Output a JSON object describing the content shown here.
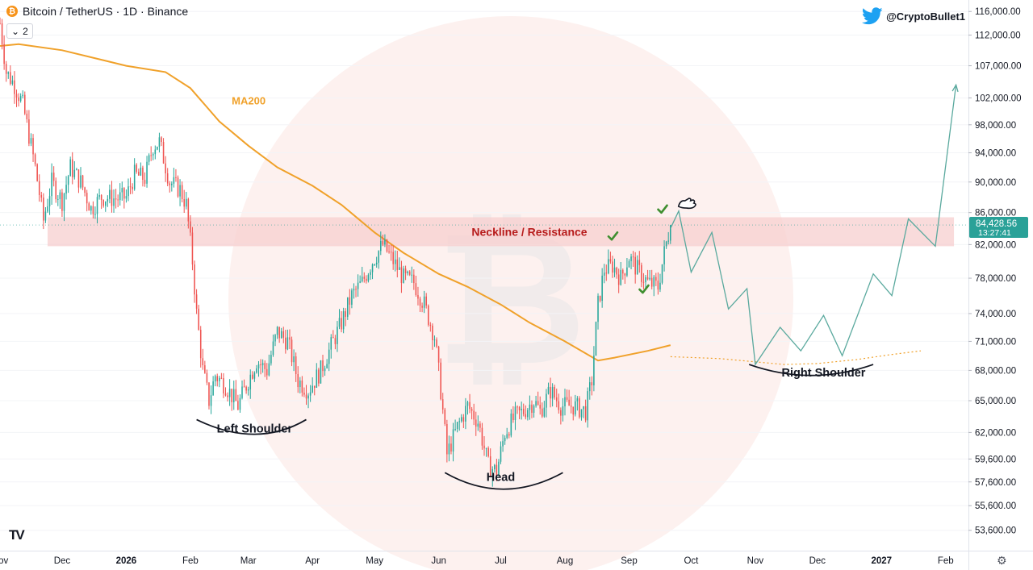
{
  "header": {
    "coin_badge": "₿",
    "title": "Bitcoin / TetherUS · 1D · Binance",
    "indicator_toggle_count": "2",
    "handle": "@CryptoBullet1",
    "twitter_icon": "twitter-bird-icon"
  },
  "colors": {
    "up": "#26a69a",
    "down": "#ef5350",
    "ma": "#f0a12a",
    "neckline_band": "#f7cfcf",
    "neckline_text": "#b71c1c",
    "projection": "#5aa99e",
    "check": "#3e8e2f",
    "price_tag": "#2aa198"
  },
  "chart_data": {
    "type": "candlestick",
    "xlim": [
      "2025-11-01",
      "2027-02-12"
    ],
    "ylim": [
      52000,
      118000
    ],
    "y_ticks": [
      53600,
      55600,
      57600,
      59600,
      62000,
      65000,
      68000,
      71000,
      74000,
      78000,
      82000,
      86000,
      90000,
      94000,
      98000,
      102000,
      107000,
      112000,
      116000
    ],
    "x_ticks": [
      {
        "label": "Nov",
        "date": "2025-11-01"
      },
      {
        "label": "Dec",
        "date": "2025-12-01"
      },
      {
        "label": "2026",
        "date": "2026-01-01"
      },
      {
        "label": "Feb",
        "date": "2026-02-01"
      },
      {
        "label": "Mar",
        "date": "2026-03-01"
      },
      {
        "label": "Apr",
        "date": "2026-04-01"
      },
      {
        "label": "May",
        "date": "2026-05-01"
      },
      {
        "label": "Jun",
        "date": "2026-06-01"
      },
      {
        "label": "Jul",
        "date": "2026-07-01"
      },
      {
        "label": "Aug",
        "date": "2026-08-01"
      },
      {
        "label": "Sep",
        "date": "2026-09-01"
      },
      {
        "label": "Oct",
        "date": "2026-10-01"
      },
      {
        "label": "Nov",
        "date": "2026-11-01"
      },
      {
        "label": "Dec",
        "date": "2026-12-01"
      },
      {
        "label": "2027",
        "date": "2027-01-01"
      },
      {
        "label": "Feb",
        "date": "2027-02-01"
      }
    ],
    "last_price": "84,428.56",
    "countdown": "13:27:41",
    "last_price_value": 84428.56,
    "price_path": [
      [
        "2025-11-01",
        114000
      ],
      [
        "2025-11-04",
        106000
      ],
      [
        "2025-11-08",
        104000
      ],
      [
        "2025-11-12",
        101000
      ],
      [
        "2025-11-15",
        96500
      ],
      [
        "2025-11-18",
        92000
      ],
      [
        "2025-11-22",
        85000
      ],
      [
        "2025-11-26",
        90000
      ],
      [
        "2025-12-01",
        87500
      ],
      [
        "2025-12-05",
        92000
      ],
      [
        "2025-12-10",
        90000
      ],
      [
        "2025-12-15",
        86500
      ],
      [
        "2025-12-20",
        88000
      ],
      [
        "2025-12-27",
        87800
      ],
      [
        "2026-01-01",
        88000
      ],
      [
        "2026-01-05",
        91000
      ],
      [
        "2026-01-10",
        90500
      ],
      [
        "2026-01-14",
        95000
      ],
      [
        "2026-01-17",
        95500
      ],
      [
        "2026-01-22",
        90000
      ],
      [
        "2026-01-27",
        89000
      ],
      [
        "2026-01-30",
        87000
      ],
      [
        "2026-02-02",
        80000
      ],
      [
        "2026-02-04",
        74000
      ],
      [
        "2026-02-07",
        68000
      ],
      [
        "2026-02-10",
        65000
      ],
      [
        "2026-02-13",
        67500
      ],
      [
        "2026-02-18",
        66500
      ],
      [
        "2026-02-24",
        64500
      ],
      [
        "2026-03-01",
        67000
      ],
      [
        "2026-03-05",
        69000
      ],
      [
        "2026-03-10",
        68000
      ],
      [
        "2026-03-15",
        72000
      ],
      [
        "2026-03-20",
        71000
      ],
      [
        "2026-03-25",
        67000
      ],
      [
        "2026-03-30",
        66000
      ],
      [
        "2026-04-05",
        68000
      ],
      [
        "2026-04-10",
        70500
      ],
      [
        "2026-04-15",
        73000
      ],
      [
        "2026-04-20",
        76000
      ],
      [
        "2026-04-25",
        77500
      ],
      [
        "2026-04-30",
        80000
      ],
      [
        "2026-05-05",
        82000
      ],
      [
        "2026-05-10",
        80000
      ],
      [
        "2026-05-15",
        78000
      ],
      [
        "2026-05-20",
        77500
      ],
      [
        "2026-05-25",
        75000
      ],
      [
        "2026-05-30",
        71500
      ],
      [
        "2026-06-02",
        66000
      ],
      [
        "2026-06-05",
        60000
      ],
      [
        "2026-06-10",
        62500
      ],
      [
        "2026-06-15",
        64500
      ],
      [
        "2026-06-20",
        63000
      ],
      [
        "2026-06-25",
        59000
      ],
      [
        "2026-06-29",
        58500
      ],
      [
        "2026-07-03",
        62000
      ],
      [
        "2026-07-08",
        63500
      ],
      [
        "2026-07-12",
        64000
      ],
      [
        "2026-07-17",
        65000
      ],
      [
        "2026-07-20",
        64000
      ],
      [
        "2026-07-25",
        66000
      ],
      [
        "2026-07-30",
        64500
      ],
      [
        "2026-08-05",
        64500
      ],
      [
        "2026-08-11",
        64000
      ],
      [
        "2026-08-14",
        67000
      ],
      [
        "2026-08-17",
        75000
      ],
      [
        "2026-08-20",
        79000
      ],
      [
        "2026-08-24",
        79500
      ],
      [
        "2026-08-28",
        78000
      ],
      [
        "2026-09-01",
        80500
      ],
      [
        "2026-09-05",
        79000
      ],
      [
        "2026-09-10",
        77500
      ],
      [
        "2026-09-15",
        77000
      ],
      [
        "2026-09-18",
        81000
      ],
      [
        "2026-09-21",
        84428.56
      ]
    ],
    "ma200": {
      "label": "MA200",
      "points": [
        [
          "2025-11-01",
          110200
        ],
        [
          "2025-11-10",
          110500
        ],
        [
          "2025-12-01",
          109500
        ],
        [
          "2026-01-01",
          107000
        ],
        [
          "2026-01-20",
          106000
        ],
        [
          "2026-02-01",
          103500
        ],
        [
          "2026-02-15",
          98500
        ],
        [
          "2026-03-01",
          95000
        ],
        [
          "2026-03-15",
          92000
        ],
        [
          "2026-04-01",
          89500
        ],
        [
          "2026-04-15",
          87000
        ],
        [
          "2026-05-01",
          83500
        ],
        [
          "2026-05-15",
          81000
        ],
        [
          "2026-06-01",
          78500
        ],
        [
          "2026-06-15",
          77000
        ],
        [
          "2026-07-01",
          75000
        ],
        [
          "2026-07-15",
          73000
        ],
        [
          "2026-08-01",
          71000
        ],
        [
          "2026-08-17",
          69000
        ],
        [
          "2026-08-25",
          69300
        ],
        [
          "2026-09-10",
          70000
        ],
        [
          "2026-09-21",
          70600
        ]
      ],
      "projection": [
        [
          "2026-09-21",
          69400
        ],
        [
          "2026-10-15",
          69200
        ],
        [
          "2026-11-15",
          68600
        ],
        [
          "2026-12-01",
          68700
        ],
        [
          "2026-12-20",
          69100
        ],
        [
          "2027-01-05",
          69600
        ],
        [
          "2027-01-20",
          70000
        ]
      ]
    },
    "projection_path": [
      [
        "2026-09-21",
        84000
      ],
      [
        "2026-09-25",
        86200
      ],
      [
        "2026-10-01",
        78700
      ],
      [
        "2026-10-11",
        83500
      ],
      [
        "2026-10-19",
        74500
      ],
      [
        "2026-10-28",
        76800
      ],
      [
        "2026-11-01",
        68600
      ],
      [
        "2026-11-13",
        72500
      ],
      [
        "2026-11-23",
        70000
      ],
      [
        "2026-12-04",
        73800
      ],
      [
        "2026-12-13",
        69500
      ],
      [
        "2026-12-28",
        78500
      ],
      [
        "2027-01-06",
        76000
      ],
      [
        "2027-01-14",
        85200
      ],
      [
        "2027-01-27",
        81800
      ],
      [
        "2027-02-06",
        104000
      ]
    ],
    "neckline": {
      "label": "Neckline / Resistance",
      "low": 81800,
      "high": 85400,
      "start": "2025-11-24",
      "end": "2027-02-05"
    },
    "annotations": [
      {
        "label": "Left Shoulder",
        "date": "2026-03-04",
        "price": 62000
      },
      {
        "label": "Head",
        "date": "2026-07-01",
        "price": 57700
      },
      {
        "label": "Right Shoulder",
        "date": "2026-12-04",
        "price": 67400
      }
    ],
    "curves": [
      {
        "from": [
          "2026-02-04",
          63200
        ],
        "control": [
          "2026-03-05",
          60500
        ],
        "to": [
          "2026-03-29",
          63200
        ]
      },
      {
        "from": [
          "2026-06-04",
          58400
        ],
        "control": [
          "2026-07-02",
          55600
        ],
        "to": [
          "2026-07-31",
          58400
        ]
      },
      {
        "from": [
          "2026-10-29",
          68600
        ],
        "control": [
          "2026-11-28",
          66400
        ],
        "to": [
          "2026-12-28",
          68600
        ]
      }
    ],
    "checkmarks": [
      {
        "date": "2026-08-24",
        "price": 83000
      },
      {
        "date": "2026-09-08",
        "price": 76700
      },
      {
        "date": "2026-09-17",
        "price": 86400
      }
    ],
    "hand_icon": {
      "name": "hand-pointing-icon",
      "date": "2026-09-28",
      "price": 87000
    }
  }
}
